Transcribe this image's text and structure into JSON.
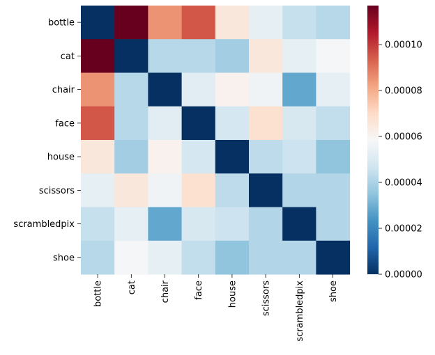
{
  "chart_data": {
    "type": "heatmap",
    "title": "",
    "xlabel": "",
    "ylabel": "",
    "categories": [
      "bottle",
      "cat",
      "chair",
      "face",
      "house",
      "scissors",
      "scrambledpix",
      "shoe"
    ],
    "row_labels": [
      "bottle",
      "cat",
      "chair",
      "face",
      "house",
      "scissors",
      "scrambledpix",
      "shoe"
    ],
    "col_labels": [
      "bottle",
      "cat",
      "chair",
      "face",
      "house",
      "scissors",
      "scrambledpix",
      "shoe"
    ],
    "values": [
      [
        0.0,
        0.000117,
        8.5e-05,
        9.5e-05,
        6.5e-05,
        5.3e-05,
        4.5e-05,
        4.2e-05
      ],
      [
        0.000117,
        0.0,
        4.2e-05,
        4.2e-05,
        3.8e-05,
        6.5e-05,
        5.3e-05,
        5.8e-05
      ],
      [
        8.5e-05,
        4.2e-05,
        0.0,
        5.2e-05,
        6.1e-05,
        5.6e-05,
        2.8e-05,
        5.3e-05
      ],
      [
        9.5e-05,
        4.2e-05,
        5.2e-05,
        0.0,
        4.8e-05,
        6.8e-05,
        4.9e-05,
        4.4e-05
      ],
      [
        6.5e-05,
        3.8e-05,
        6.1e-05,
        4.8e-05,
        0.0,
        4.3e-05,
        4.6e-05,
        3.5e-05
      ],
      [
        5.3e-05,
        6.5e-05,
        5.6e-05,
        6.8e-05,
        4.3e-05,
        0.0,
        4.1e-05,
        4.1e-05
      ],
      [
        4.5e-05,
        5.3e-05,
        2.8e-05,
        4.9e-05,
        4.6e-05,
        4.1e-05,
        0.0,
        4.1e-05
      ],
      [
        4.2e-05,
        5.8e-05,
        5.3e-05,
        4.4e-05,
        3.5e-05,
        4.1e-05,
        4.1e-05,
        0.0
      ]
    ],
    "vmin": 0.0,
    "vmax": 0.000117,
    "colormap": "RdBu_r",
    "colormap_stops": [
      "#053061",
      "#2166ac",
      "#4393c3",
      "#92c5de",
      "#d1e5f0",
      "#f7f7f7",
      "#fddbc7",
      "#f4a582",
      "#d6604d",
      "#b2182b",
      "#67001f"
    ],
    "colorbar": {
      "ticks": [
        0.0,
        2e-05,
        4e-05,
        6e-05,
        8e-05,
        0.0001
      ],
      "tick_labels": [
        "0.00000",
        "0.00002",
        "0.00004",
        "0.00006",
        "0.00008",
        "0.00010"
      ]
    },
    "grid": false,
    "legend": "colorbar-right"
  }
}
